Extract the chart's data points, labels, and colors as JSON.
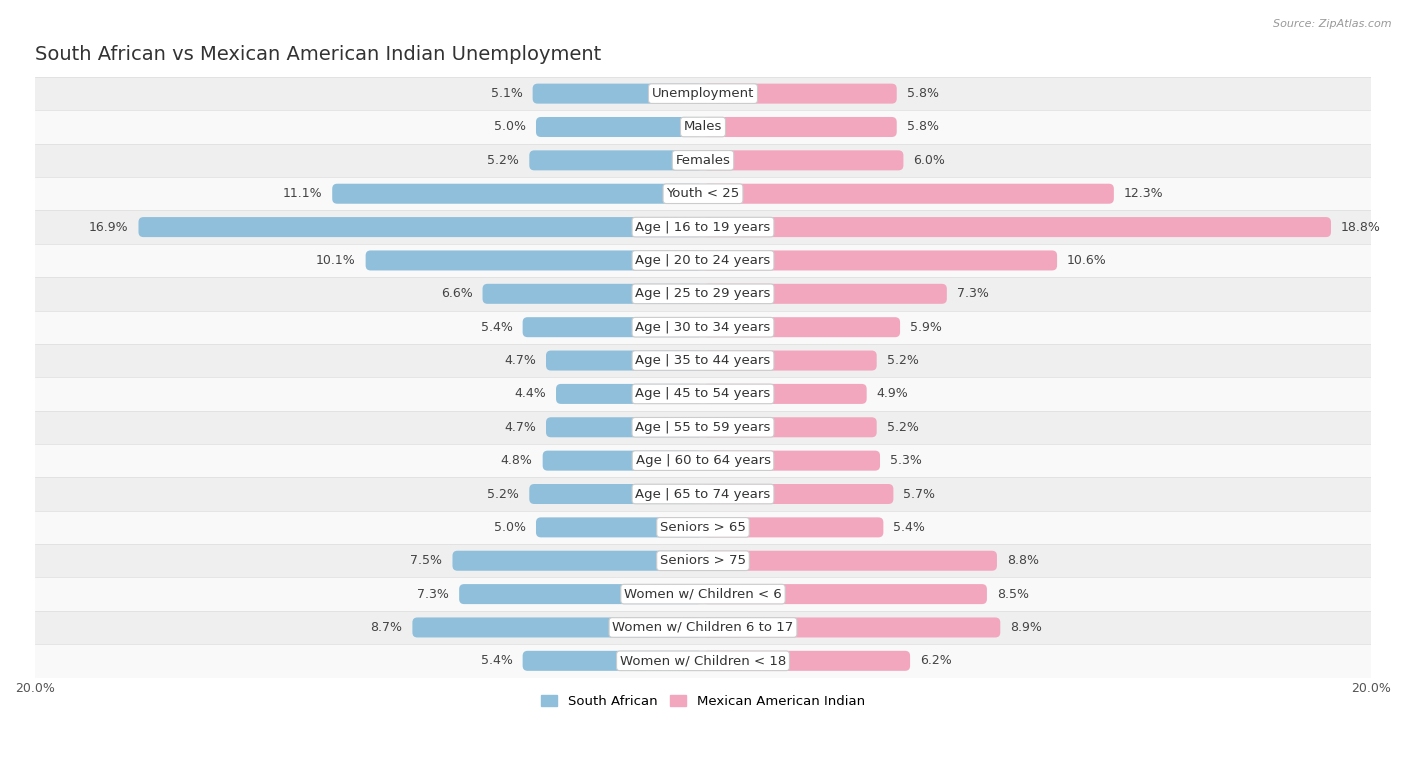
{
  "title": "South African vs Mexican American Indian Unemployment",
  "source": "Source: ZipAtlas.com",
  "categories": [
    "Unemployment",
    "Males",
    "Females",
    "Youth < 25",
    "Age | 16 to 19 years",
    "Age | 20 to 24 years",
    "Age | 25 to 29 years",
    "Age | 30 to 34 years",
    "Age | 35 to 44 years",
    "Age | 45 to 54 years",
    "Age | 55 to 59 years",
    "Age | 60 to 64 years",
    "Age | 65 to 74 years",
    "Seniors > 65",
    "Seniors > 75",
    "Women w/ Children < 6",
    "Women w/ Children 6 to 17",
    "Women w/ Children < 18"
  ],
  "left_values": [
    5.1,
    5.0,
    5.2,
    11.1,
    16.9,
    10.1,
    6.6,
    5.4,
    4.7,
    4.4,
    4.7,
    4.8,
    5.2,
    5.0,
    7.5,
    7.3,
    8.7,
    5.4
  ],
  "right_values": [
    5.8,
    5.8,
    6.0,
    12.3,
    18.8,
    10.6,
    7.3,
    5.9,
    5.2,
    4.9,
    5.2,
    5.3,
    5.7,
    5.4,
    8.8,
    8.5,
    8.9,
    6.2
  ],
  "left_color": "#90bfdb",
  "right_color": "#f2a7bf",
  "left_label": "South African",
  "right_label": "Mexican American Indian",
  "bar_height": 0.6,
  "row_bg_even": "#efefef",
  "row_bg_odd": "#f9f9f9",
  "row_border_color": "#dddddd",
  "x_max": 20.0,
  "title_fontsize": 14,
  "label_fontsize": 9.5,
  "value_fontsize": 9,
  "tick_fontsize": 9,
  "background_color": "#ffffff"
}
